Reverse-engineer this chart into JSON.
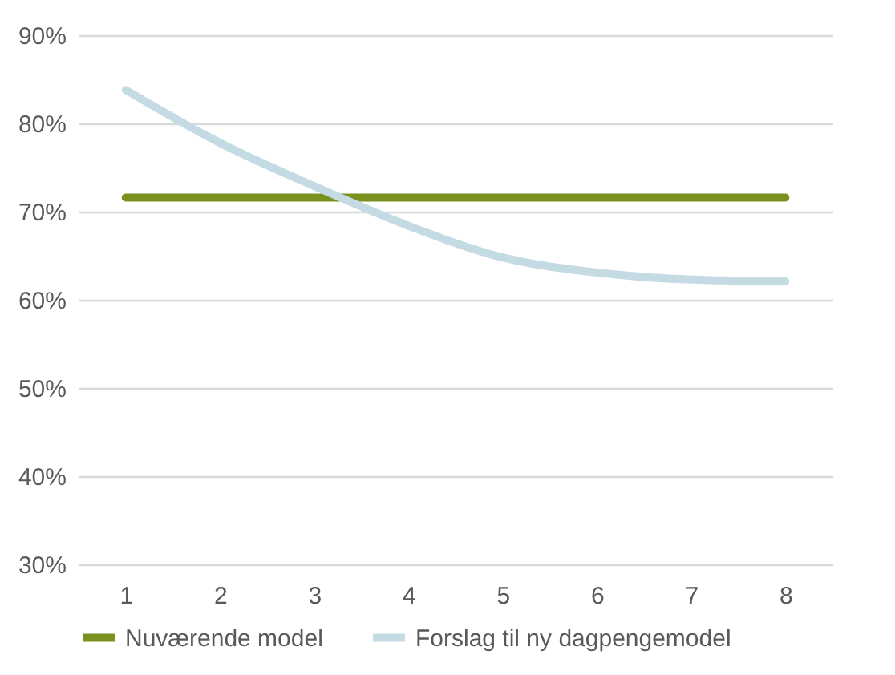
{
  "chart_data": {
    "type": "line",
    "categories": [
      "1",
      "2",
      "3",
      "4",
      "5",
      "6",
      "7",
      "8"
    ],
    "series": [
      {
        "name": "Nuværende model",
        "color": "#7a9120",
        "values": [
          71.6,
          71.6,
          71.6,
          71.6,
          71.6,
          71.6,
          71.6,
          71.6
        ]
      },
      {
        "name": "Forslag til ny dagpengemodel",
        "color": "#c5dbe3",
        "values": [
          83.8,
          77.8,
          72.9,
          68.4,
          64.8,
          63.1,
          62.3,
          62.1
        ]
      }
    ],
    "ylim": [
      30,
      90
    ],
    "yticks": [
      {
        "value": 30,
        "label": "30%"
      },
      {
        "value": 40,
        "label": "40%"
      },
      {
        "value": 50,
        "label": "50%"
      },
      {
        "value": 60,
        "label": "60%"
      },
      {
        "value": 70,
        "label": "70%"
      },
      {
        "value": 80,
        "label": "80%"
      },
      {
        "value": 90,
        "label": "90%"
      }
    ],
    "grid": "y",
    "legend": "bottom",
    "line_style": "solid",
    "marker": "none"
  }
}
